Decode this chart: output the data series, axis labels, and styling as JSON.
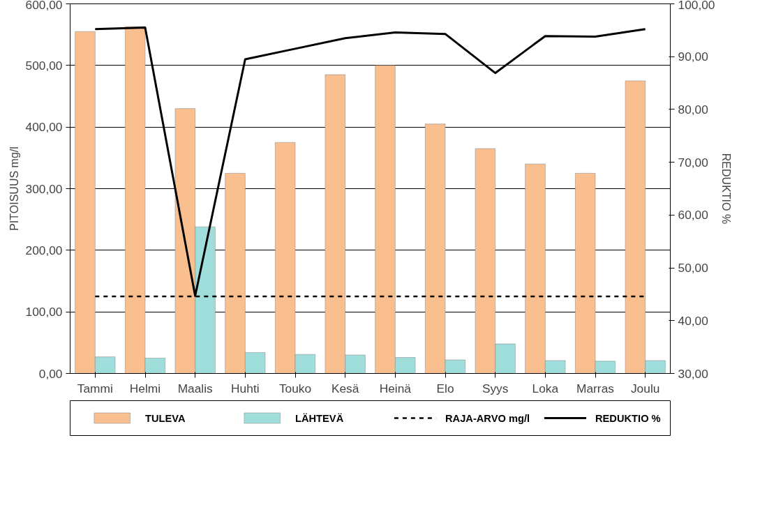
{
  "chart_data": {
    "type": "bar",
    "ylabel": "PITOISUUS mg/l",
    "y2label": "REDUKTIO %",
    "categories": [
      "Tammi",
      "Helmi",
      "Maalis",
      "Huhti",
      "Touko",
      "Kesä",
      "Heinä",
      "Elo",
      "Syys",
      "Loka",
      "Marras",
      "Joulu"
    ],
    "series": [
      {
        "name": "TULEVA",
        "color": "#f9bf8f",
        "values": [
          555,
          563,
          430,
          325,
          375,
          485,
          500,
          405,
          365,
          340,
          325,
          475
        ]
      },
      {
        "name": "LÄHTEVÄ",
        "color": "#a0dedc",
        "values": [
          27,
          25,
          238,
          34,
          31,
          30,
          26,
          22,
          48,
          21,
          20,
          21
        ]
      },
      {
        "name": "RAJA-ARVO mg/l",
        "type": "line",
        "line_style": "dashed",
        "color": "#000000",
        "values": [
          125,
          125,
          125,
          125,
          125,
          125,
          125,
          125,
          125,
          125,
          125,
          125
        ]
      },
      {
        "name": "REDUKTIO %",
        "type": "line",
        "line_style": "solid",
        "axis": "y2",
        "color": "#000000",
        "values": [
          95.2,
          95.5,
          44.7,
          89.5,
          91.5,
          93.5,
          94.6,
          94.3,
          86.9,
          93.9,
          93.8,
          95.2
        ]
      }
    ],
    "ylim": [
      0,
      600
    ],
    "yticks": [
      {
        "value": 0,
        "label": "0,00"
      },
      {
        "value": 100,
        "label": "100,00"
      },
      {
        "value": 200,
        "label": "200,00"
      },
      {
        "value": 300,
        "label": "300,00"
      },
      {
        "value": 400,
        "label": "400,00"
      },
      {
        "value": 500,
        "label": "500,00"
      },
      {
        "value": 600,
        "label": "600,00"
      }
    ],
    "y2lim": [
      30,
      100
    ],
    "y2ticks": [
      {
        "value": 30,
        "label": "30,00"
      },
      {
        "value": 40,
        "label": "40,00"
      },
      {
        "value": 50,
        "label": "50,00"
      },
      {
        "value": 60,
        "label": "60,00"
      },
      {
        "value": 70,
        "label": "70,00"
      },
      {
        "value": 80,
        "label": "80,00"
      },
      {
        "value": 90,
        "label": "90,00"
      },
      {
        "value": 100,
        "label": "100,00"
      }
    ],
    "grid": "y",
    "legend": "bottom"
  }
}
